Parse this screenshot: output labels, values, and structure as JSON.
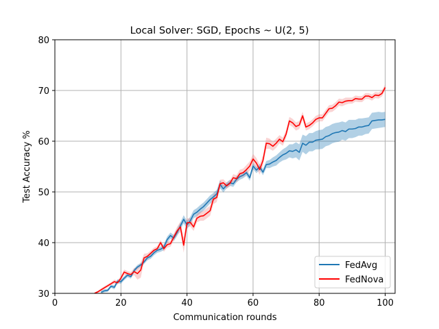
{
  "chart_data": {
    "type": "line",
    "title": "Local Solver: SGD, Epochs ~ U(2, 5)",
    "xlabel": "Communication rounds",
    "ylabel": "Test Accuracy %",
    "xlim": [
      0,
      103
    ],
    "ylim": [
      30,
      80
    ],
    "xticks": [
      0,
      20,
      40,
      60,
      80,
      100
    ],
    "yticks": [
      30,
      40,
      50,
      60,
      70,
      80
    ],
    "xtick_labels": [
      "0",
      "20",
      "40",
      "60",
      "80",
      "100"
    ],
    "ytick_labels": [
      "30",
      "40",
      "50",
      "60",
      "70",
      "80"
    ],
    "grid": true,
    "legend_position": "bottom-right",
    "legend": [
      "FedAvg",
      "FedNova"
    ],
    "series": [
      {
        "name": "FedAvg",
        "color": "#1f77b4",
        "band_color": "#1f77b4",
        "x": [
          14,
          15,
          16,
          17,
          18,
          19,
          20,
          21,
          22,
          23,
          24,
          25,
          26,
          27,
          28,
          29,
          30,
          31,
          32,
          33,
          34,
          35,
          36,
          37,
          38,
          39,
          40,
          41,
          42,
          43,
          44,
          45,
          46,
          47,
          48,
          49,
          50,
          51,
          52,
          53,
          54,
          55,
          56,
          57,
          58,
          59,
          60,
          61,
          62,
          63,
          64,
          65,
          66,
          67,
          68,
          69,
          70,
          71,
          72,
          73,
          74,
          75,
          76,
          77,
          78,
          79,
          80,
          81,
          82,
          83,
          84,
          85,
          86,
          87,
          88,
          89,
          90,
          91,
          92,
          93,
          94,
          95,
          96,
          97,
          98,
          99,
          100
        ],
        "y": [
          30.2,
          30.5,
          30.6,
          31.4,
          31.2,
          32.4,
          32.3,
          33.0,
          33.6,
          33.3,
          34.5,
          35.2,
          35.6,
          36.2,
          37.0,
          37.3,
          38.0,
          38.5,
          38.7,
          39.1,
          40.6,
          41.4,
          40.9,
          42.0,
          43.3,
          44.6,
          43.5,
          44.3,
          45.6,
          46.0,
          46.6,
          47.1,
          47.8,
          48.5,
          49.0,
          49.6,
          51.5,
          50.6,
          51.3,
          51.8,
          51.6,
          52.5,
          53.0,
          53.3,
          53.8,
          52.8,
          55.1,
          54.3,
          54.9,
          53.9,
          55.4,
          55.5,
          55.9,
          56.2,
          56.8,
          57.3,
          57.6,
          58.1,
          58.0,
          58.3,
          57.8,
          59.6,
          59.2,
          59.8,
          59.8,
          60.2,
          60.3,
          60.4,
          60.9,
          61.1,
          61.5,
          61.7,
          61.8,
          62.1,
          61.9,
          62.4,
          62.4,
          62.5,
          62.8,
          62.8,
          63.0,
          63.1,
          64.0,
          64.1,
          64.2,
          64.2,
          64.3
        ],
        "band_halfwidth": [
          0.3,
          0.3,
          0.3,
          0.3,
          0.4,
          0.4,
          0.4,
          0.4,
          0.4,
          0.4,
          0.4,
          0.4,
          0.4,
          0.4,
          0.5,
          0.5,
          0.5,
          0.5,
          0.5,
          0.6,
          0.6,
          0.6,
          0.6,
          0.7,
          0.7,
          0.8,
          0.8,
          0.8,
          0.8,
          0.8,
          0.8,
          0.8,
          0.8,
          0.8,
          0.8,
          0.8,
          0.8,
          0.7,
          0.6,
          0.6,
          0.6,
          0.6,
          0.6,
          0.6,
          0.6,
          0.6,
          0.6,
          0.6,
          0.6,
          0.6,
          0.7,
          0.8,
          0.9,
          1.0,
          1.0,
          1.1,
          1.2,
          1.3,
          1.4,
          1.5,
          1.6,
          1.7,
          1.8,
          1.8,
          1.8,
          1.8,
          1.9,
          1.9,
          1.9,
          1.9,
          1.9,
          1.9,
          1.9,
          1.8,
          1.8,
          1.8,
          1.8,
          1.7,
          1.7,
          1.7,
          1.6,
          1.6,
          1.6,
          1.6,
          1.6,
          1.5,
          1.5
        ]
      },
      {
        "name": "FedNova",
        "color": "#ff0000",
        "band_color": "#f08080",
        "x": [
          12,
          13,
          14,
          15,
          16,
          17,
          18,
          19,
          20,
          21,
          22,
          23,
          24,
          25,
          26,
          27,
          28,
          29,
          30,
          31,
          32,
          33,
          34,
          35,
          36,
          37,
          38,
          39,
          40,
          41,
          42,
          43,
          44,
          45,
          46,
          47,
          48,
          49,
          50,
          51,
          52,
          53,
          54,
          55,
          56,
          57,
          58,
          59,
          60,
          61,
          62,
          63,
          64,
          65,
          66,
          67,
          68,
          69,
          70,
          71,
          72,
          73,
          74,
          75,
          76,
          77,
          78,
          79,
          80,
          81,
          82,
          83,
          84,
          85,
          86,
          87,
          88,
          89,
          90,
          91,
          92,
          93,
          94,
          95,
          96,
          97,
          98,
          99,
          100
        ],
        "y": [
          30.0,
          30.3,
          30.7,
          31.1,
          31.5,
          31.9,
          32.3,
          32.1,
          33.0,
          34.2,
          33.9,
          33.7,
          34.3,
          33.9,
          34.6,
          37.0,
          37.3,
          37.9,
          38.5,
          38.8,
          40.0,
          38.8,
          39.6,
          39.8,
          41.1,
          42.3,
          43.1,
          39.5,
          43.9,
          44.0,
          43.1,
          44.8,
          45.2,
          45.3,
          45.8,
          46.3,
          48.6,
          48.9,
          51.6,
          51.8,
          51.2,
          51.7,
          52.8,
          52.6,
          53.6,
          53.8,
          54.4,
          55.1,
          56.5,
          55.7,
          54.4,
          56.2,
          59.6,
          59.5,
          59.0,
          59.6,
          60.4,
          59.9,
          61.4,
          64.0,
          63.6,
          62.9,
          63.2,
          65.0,
          62.8,
          63.1,
          63.6,
          64.3,
          64.6,
          64.6,
          65.5,
          66.4,
          66.5,
          67.0,
          67.7,
          67.6,
          67.9,
          68.0,
          68.0,
          68.4,
          68.3,
          68.3,
          68.9,
          68.9,
          68.6,
          69.1,
          69.0,
          69.4,
          70.6
        ],
        "band_halfwidth": [
          0.2,
          0.2,
          0.3,
          0.3,
          0.3,
          0.3,
          0.4,
          0.4,
          0.5,
          0.5,
          0.5,
          0.5,
          0.7,
          1.2,
          1.5,
          0.8,
          0.6,
          0.5,
          0.5,
          0.5,
          0.5,
          0.6,
          0.6,
          0.6,
          0.7,
          0.8,
          1.0,
          1.5,
          0.9,
          0.8,
          0.8,
          0.8,
          0.9,
          1.0,
          1.0,
          1.0,
          1.0,
          0.9,
          0.8,
          0.7,
          0.6,
          0.6,
          0.7,
          0.7,
          0.8,
          0.8,
          0.9,
          0.9,
          1.0,
          1.0,
          1.0,
          1.0,
          1.1,
          1.0,
          0.9,
          0.9,
          0.8,
          0.8,
          0.8,
          0.8,
          0.8,
          0.8,
          0.8,
          0.8,
          0.7,
          0.7,
          0.7,
          0.7,
          0.7,
          0.7,
          0.7,
          0.7,
          0.7,
          0.7,
          0.7,
          0.7,
          0.7,
          0.6,
          0.6,
          0.6,
          0.6,
          0.6,
          0.6,
          0.6,
          0.6,
          0.6,
          0.6,
          0.6,
          0.6
        ]
      }
    ]
  }
}
